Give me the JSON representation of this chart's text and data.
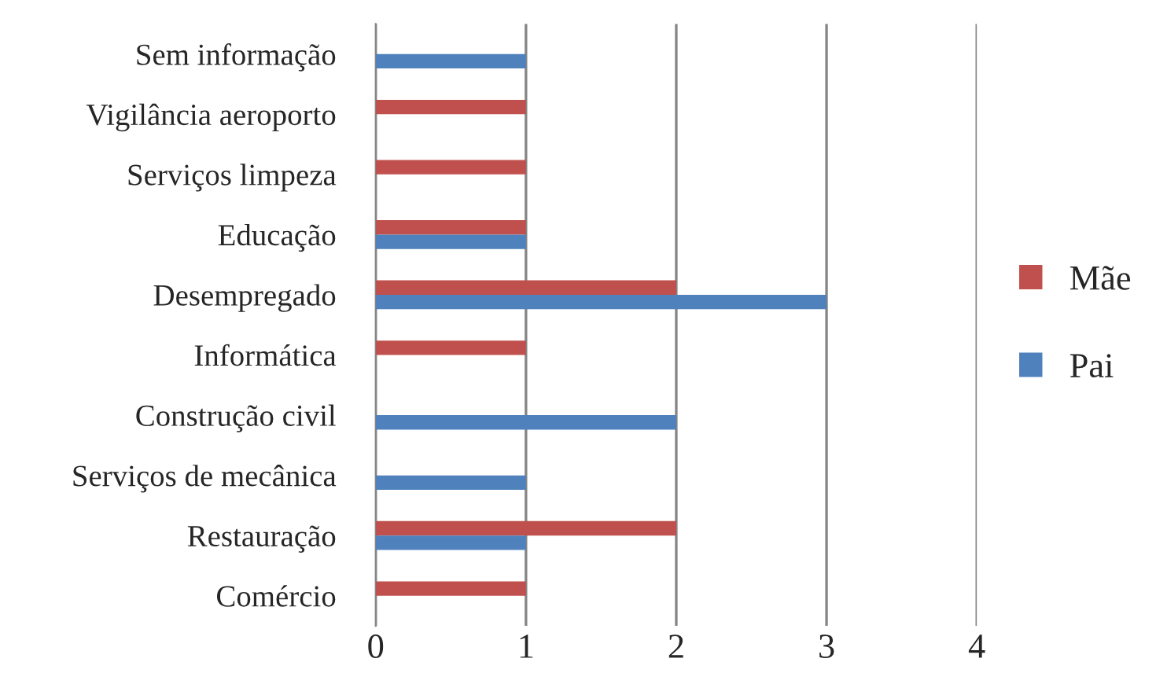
{
  "chart_data": {
    "type": "bar",
    "orientation": "horizontal",
    "categories": [
      "Sem informação",
      "Vigilância aeroporto",
      "Serviços limpeza",
      "Educação",
      "Desempregado",
      "Informática",
      "Construção civil",
      "Serviços de mecânica",
      "Restauração",
      "Comércio"
    ],
    "series": [
      {
        "name": "Mãe",
        "color": "#c0504d",
        "values": [
          null,
          1,
          1,
          1,
          2,
          1,
          null,
          null,
          2,
          1
        ]
      },
      {
        "name": "Pai",
        "color": "#4f81bd",
        "values": [
          1,
          null,
          null,
          1,
          3,
          null,
          2,
          1,
          1,
          null
        ]
      }
    ],
    "xlim": [
      0,
      4
    ],
    "xticks": [
      0,
      1,
      2,
      3,
      4
    ],
    "grid": "x",
    "legend": "right"
  }
}
